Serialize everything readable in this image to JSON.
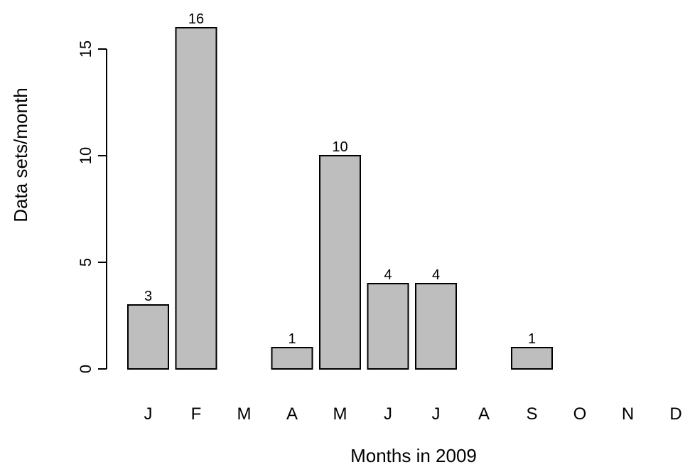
{
  "chart_data": {
    "type": "bar",
    "categories": [
      "J",
      "F",
      "M",
      "A",
      "M",
      "J",
      "J",
      "A",
      "S",
      "O",
      "N",
      "D"
    ],
    "values": [
      3,
      16,
      0,
      1,
      10,
      4,
      4,
      0,
      1,
      0,
      0,
      0
    ],
    "value_labels": [
      "3",
      "16",
      "",
      "1",
      "10",
      "4",
      "4",
      "",
      "1",
      "",
      "",
      ""
    ],
    "title": "",
    "xlabel": "Months in 2009",
    "ylabel": "Data sets/month",
    "ylim": [
      0,
      16
    ],
    "yticks": [
      0,
      5,
      10,
      15
    ],
    "ytick_labels": [
      "0",
      "5",
      "10",
      "15"
    ],
    "grid": false,
    "bar_color": "#bebebe",
    "edge_color": "#000000"
  }
}
